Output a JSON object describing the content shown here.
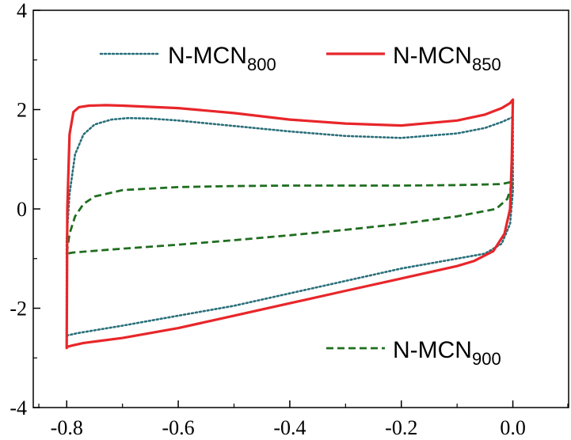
{
  "chart_data": {
    "type": "line",
    "title": "",
    "xlabel": "",
    "ylabel": "",
    "xlim": [
      -0.86,
      0.1
    ],
    "ylim": [
      -4,
      4
    ],
    "x_ticks": [
      -0.8,
      -0.6,
      -0.4,
      -0.2,
      0.0
    ],
    "x_tick_labels": [
      "-0.8",
      "-0.6",
      "-0.4",
      "-0.2",
      "0.0"
    ],
    "y_ticks": [
      -4,
      -2,
      0,
      2,
      4
    ],
    "y_tick_labels": [
      "-4",
      "-2",
      "0",
      "2",
      "4"
    ],
    "grid": false,
    "legend_placement": "top (two entries) and lower-right (one entry)",
    "series": [
      {
        "name": "N-MCN800",
        "legend": {
          "base": "N-MCN",
          "sub": "800"
        },
        "color": "#2a6f7a",
        "style": "dotted",
        "x": [
          -0.8,
          -0.795,
          -0.785,
          -0.77,
          -0.75,
          -0.72,
          -0.69,
          -0.65,
          -0.6,
          -0.5,
          -0.4,
          -0.3,
          -0.2,
          -0.1,
          -0.05,
          -0.02,
          0.0,
          0.0,
          -0.005,
          -0.02,
          -0.05,
          -0.1,
          -0.2,
          -0.3,
          -0.4,
          -0.5,
          -0.6,
          -0.7,
          -0.78,
          -0.8
        ],
        "y": [
          -0.6,
          0.3,
          1.1,
          1.5,
          1.7,
          1.8,
          1.83,
          1.82,
          1.78,
          1.67,
          1.56,
          1.47,
          1.43,
          1.52,
          1.63,
          1.75,
          1.85,
          0.35,
          -0.3,
          -0.7,
          -0.9,
          -1.0,
          -1.2,
          -1.45,
          -1.7,
          -1.95,
          -2.15,
          -2.35,
          -2.5,
          -2.55
        ]
      },
      {
        "name": "N-MCN850",
        "legend": {
          "base": "N-MCN",
          "sub": "850"
        },
        "color": "#e8262a",
        "style": "solid",
        "x": [
          -0.8,
          -0.799,
          -0.795,
          -0.788,
          -0.778,
          -0.76,
          -0.73,
          -0.7,
          -0.6,
          -0.5,
          -0.4,
          -0.3,
          -0.2,
          -0.1,
          -0.05,
          -0.02,
          -0.005,
          0.0,
          -0.002,
          -0.005,
          -0.015,
          -0.035,
          -0.07,
          -0.1,
          -0.2,
          -0.3,
          -0.4,
          -0.5,
          -0.6,
          -0.7,
          -0.77,
          -0.79,
          -0.8,
          -0.8
        ],
        "y": [
          -2.8,
          0.0,
          1.5,
          1.95,
          2.05,
          2.08,
          2.09,
          2.08,
          2.03,
          1.93,
          1.8,
          1.72,
          1.68,
          1.78,
          1.9,
          2.03,
          2.13,
          2.2,
          1.0,
          0.0,
          -0.5,
          -0.85,
          -1.05,
          -1.15,
          -1.4,
          -1.65,
          -1.9,
          -2.15,
          -2.4,
          -2.6,
          -2.7,
          -2.75,
          -2.78,
          -2.8
        ]
      },
      {
        "name": "N-MCN900",
        "legend": {
          "base": "N-MCN",
          "sub": "900"
        },
        "color": "#1f6e1f",
        "style": "dashed",
        "x": [
          -0.8,
          -0.795,
          -0.785,
          -0.77,
          -0.75,
          -0.7,
          -0.6,
          -0.5,
          -0.4,
          -0.3,
          -0.2,
          -0.1,
          -0.02,
          0.0,
          -0.003,
          -0.01,
          -0.03,
          -0.1,
          -0.2,
          -0.3,
          -0.4,
          -0.5,
          -0.6,
          -0.7,
          -0.79,
          -0.8
        ],
        "y": [
          -0.9,
          -0.5,
          -0.15,
          0.1,
          0.25,
          0.38,
          0.44,
          0.46,
          0.47,
          0.47,
          0.47,
          0.48,
          0.5,
          0.55,
          0.45,
          0.2,
          0.0,
          -0.15,
          -0.3,
          -0.42,
          -0.53,
          -0.63,
          -0.72,
          -0.8,
          -0.88,
          -0.9
        ]
      }
    ]
  }
}
